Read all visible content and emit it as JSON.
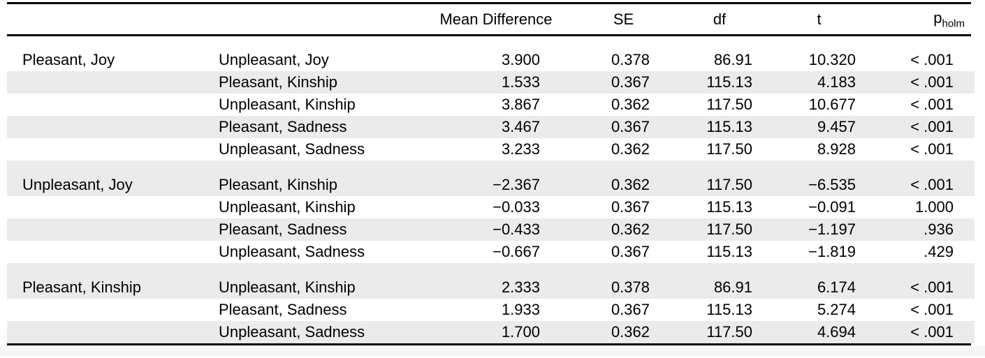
{
  "table": {
    "headers": {
      "mean_difference": "Mean Difference",
      "se": "SE",
      "df": "df",
      "t": "t",
      "p": "p",
      "p_sub": "holm"
    },
    "groups": [
      {
        "label": "Pleasant, Joy",
        "rows": [
          {
            "contrast": "Unpleasant, Joy",
            "md": "3.900",
            "se": "0.378",
            "df": "86.91",
            "t": "10.320",
            "p": "< .001"
          },
          {
            "contrast": "Pleasant, Kinship",
            "md": "1.533",
            "se": "0.367",
            "df": "115.13",
            "t": "4.183",
            "p": "< .001"
          },
          {
            "contrast": "Unpleasant, Kinship",
            "md": "3.867",
            "se": "0.362",
            "df": "117.50",
            "t": "10.677",
            "p": "< .001"
          },
          {
            "contrast": "Pleasant, Sadness",
            "md": "3.467",
            "se": "0.367",
            "df": "115.13",
            "t": "9.457",
            "p": "< .001"
          },
          {
            "contrast": "Unpleasant, Sadness",
            "md": "3.233",
            "se": "0.362",
            "df": "117.50",
            "t": "8.928",
            "p": "< .001"
          }
        ]
      },
      {
        "label": "Unpleasant, Joy",
        "rows": [
          {
            "contrast": "Pleasant, Kinship",
            "md": "−2.367",
            "se": "0.362",
            "df": "117.50",
            "t": "−6.535",
            "p": "< .001"
          },
          {
            "contrast": "Unpleasant, Kinship",
            "md": "−0.033",
            "se": "0.367",
            "df": "115.13",
            "t": "−0.091",
            "p": "1.000"
          },
          {
            "contrast": "Pleasant, Sadness",
            "md": "−0.433",
            "se": "0.362",
            "df": "117.50",
            "t": "−1.197",
            "p": ".936"
          },
          {
            "contrast": "Unpleasant, Sadness",
            "md": "−0.667",
            "se": "0.367",
            "df": "115.13",
            "t": "−1.819",
            "p": ".429"
          }
        ]
      },
      {
        "label": "Pleasant, Kinship",
        "rows": [
          {
            "contrast": "Unpleasant, Kinship",
            "md": "2.333",
            "se": "0.378",
            "df": "86.91",
            "t": "6.174",
            "p": "< .001"
          },
          {
            "contrast": "Pleasant, Sadness",
            "md": "1.933",
            "se": "0.367",
            "df": "115.13",
            "t": "5.274",
            "p": "< .001"
          },
          {
            "contrast": "Unpleasant, Sadness",
            "md": "1.700",
            "se": "0.362",
            "df": "117.50",
            "t": "4.694",
            "p": "< .001"
          }
        ]
      }
    ]
  },
  "colors": {
    "stripe": "#EBEBEB",
    "rule": "#000000",
    "text": "#000000",
    "background": "#FFFFFF",
    "footer_strip": "#F6F6F6"
  }
}
